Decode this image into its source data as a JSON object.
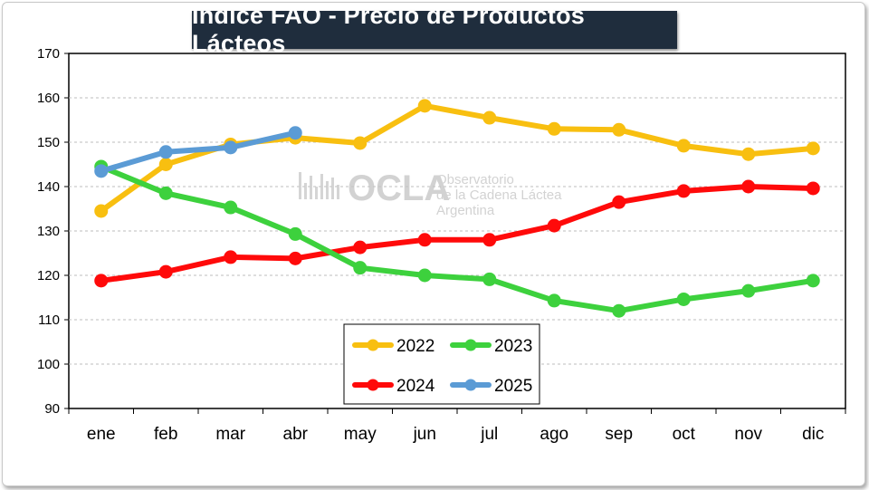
{
  "title": "Indice FAO - Precio de Productos Lácteos",
  "watermark": {
    "brand": "OCLA",
    "line1": "Observatorio",
    "line2": "de la Cadena Láctea",
    "line3": "Argentina"
  },
  "chart_data": {
    "type": "line",
    "title": "Indice FAO - Precio de Productos Lácteos",
    "xlabel": "",
    "ylabel": "",
    "categories": [
      "ene",
      "feb",
      "mar",
      "abr",
      "may",
      "jun",
      "jul",
      "ago",
      "sep",
      "oct",
      "nov",
      "dic"
    ],
    "ylim": [
      90,
      170
    ],
    "yticks": [
      90,
      100,
      110,
      120,
      130,
      140,
      150,
      160,
      170
    ],
    "grid": true,
    "legend_position": "bottom-center",
    "series": [
      {
        "name": "2022",
        "color": "#f8bf10",
        "values": [
          134.5,
          145,
          149.5,
          151,
          149.8,
          158.2,
          155.5,
          153,
          152.8,
          149.2,
          147.3,
          148.6
        ]
      },
      {
        "name": "2023",
        "color": "#3dd13d",
        "values": [
          144.5,
          138.5,
          135.3,
          129.3,
          121.7,
          120,
          119.1,
          114.3,
          112,
          114.6,
          116.5,
          118.8
        ]
      },
      {
        "name": "2024",
        "color": "#ff0a0a",
        "values": [
          118.8,
          120.8,
          124.1,
          123.8,
          126.3,
          128,
          128,
          131.2,
          136.5,
          139,
          140,
          139.6
        ]
      },
      {
        "name": "2025",
        "color": "#5b9bd5",
        "values": [
          143.5,
          147.8,
          148.8,
          152.1,
          null,
          null,
          null,
          null,
          null,
          null,
          null,
          null
        ]
      }
    ]
  }
}
